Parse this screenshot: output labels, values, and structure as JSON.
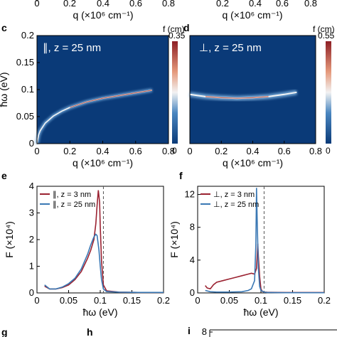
{
  "top_strip": {
    "ticks_left": [
      "0",
      "0.2",
      "0.4",
      "0.6",
      "0.8"
    ],
    "ticks_right": [
      "0.2",
      "0.4",
      "0.6",
      "0.8"
    ],
    "xlabel": "q (×10⁶ cm⁻¹)"
  },
  "panel_labels": {
    "c": "c",
    "d": "d",
    "e": "e",
    "f": "f",
    "g": "g",
    "h": "h",
    "i": "i"
  },
  "chart_data": [
    {
      "id": "c",
      "type": "heatmap",
      "inset_label": "∥, z = 25 nm",
      "xlabel": "q (×10⁶ cm⁻¹)",
      "ylabel": "ħω (eV)",
      "xlim": [
        0,
        0.8
      ],
      "ylim": [
        0,
        0.2
      ],
      "xticks": [
        "0",
        "0.2",
        "0.4",
        "0.6",
        "0.8"
      ],
      "yticks": [
        "0",
        "0.05",
        "0.1",
        "0.15",
        "0.2"
      ],
      "colorbar": {
        "label": "f (cm)",
        "max": "0.35",
        "min": "0"
      },
      "background_color": "#0a3a78",
      "ridge": {
        "q": [
          0.0,
          0.01,
          0.02,
          0.05,
          0.1,
          0.15,
          0.2,
          0.3,
          0.4,
          0.5,
          0.6,
          0.7
        ],
        "hw": [
          0.0,
          0.016,
          0.024,
          0.038,
          0.051,
          0.06,
          0.067,
          0.077,
          0.084,
          0.089,
          0.094,
          0.099
        ]
      }
    },
    {
      "id": "d",
      "type": "heatmap",
      "inset_label": "⊥, z = 25 nm",
      "xlabel": "q (×10⁶ cm⁻¹)",
      "xlim": [
        0,
        0.8
      ],
      "ylim": [
        0,
        0.2
      ],
      "xticks": [
        "0",
        "0.2",
        "0.4",
        "0.6",
        "0.8"
      ],
      "colorbar": {
        "label": "f (cm)",
        "max": "0.55",
        "min": "0"
      },
      "background_color": "#0a3a78",
      "ridge": {
        "q": [
          0.0,
          0.05,
          0.1,
          0.2,
          0.3,
          0.4,
          0.5,
          0.6,
          0.68
        ],
        "hw": [
          0.091,
          0.089,
          0.087,
          0.085,
          0.084,
          0.085,
          0.087,
          0.091,
          0.095
        ]
      }
    },
    {
      "id": "e",
      "type": "line",
      "xlabel": "ħω (eV)",
      "ylabel": "F (×10⁴)",
      "xlim": [
        0,
        0.2
      ],
      "ylim": [
        0,
        4
      ],
      "xticks": [
        "0",
        "0.05",
        "0.1",
        "0.15",
        "0.2"
      ],
      "yticks": [
        "0",
        "1",
        "2",
        "3",
        "4"
      ],
      "vline_x": 0.105,
      "legend_position": "top-left",
      "series": [
        {
          "name": "∥, z = 3 nm",
          "color": "#9b2231",
          "x": [
            0.012,
            0.02,
            0.03,
            0.04,
            0.05,
            0.06,
            0.07,
            0.08,
            0.085,
            0.09,
            0.093,
            0.095,
            0.097,
            0.099,
            0.1,
            0.102,
            0.105,
            0.11,
            0.13,
            0.16,
            0.2
          ],
          "y": [
            0.25,
            0.15,
            0.15,
            0.2,
            0.3,
            0.5,
            0.8,
            1.3,
            1.6,
            2.0,
            2.6,
            3.3,
            3.85,
            3.4,
            2.5,
            1.2,
            0.3,
            0.08,
            0.03,
            0.02,
            0.02
          ]
        },
        {
          "name": "∥, z = 25 nm",
          "color": "#3a78b4",
          "x": [
            0.012,
            0.02,
            0.03,
            0.04,
            0.05,
            0.06,
            0.07,
            0.08,
            0.085,
            0.09,
            0.093,
            0.095,
            0.098,
            0.1,
            0.102,
            0.105,
            0.11,
            0.13,
            0.16,
            0.2
          ],
          "y": [
            0.3,
            0.15,
            0.15,
            0.22,
            0.35,
            0.55,
            0.9,
            1.45,
            1.8,
            2.1,
            2.2,
            2.15,
            1.6,
            1.0,
            0.5,
            0.15,
            0.05,
            0.03,
            0.02,
            0.02
          ]
        }
      ]
    },
    {
      "id": "f",
      "type": "line",
      "xlabel": "ħω (eV)",
      "ylabel": "F (×10⁴)",
      "xlim": [
        0,
        0.2
      ],
      "ylim": [
        0,
        13
      ],
      "xticks": [
        "0",
        "0.05",
        "0.1",
        "0.15",
        "0.2"
      ],
      "yticks": [
        "0",
        "4",
        "8",
        "12"
      ],
      "vline_x": 0.105,
      "legend_position": "top-left",
      "series": [
        {
          "name": "⊥, z = 3 nm",
          "color": "#9b2231",
          "x": [
            0.012,
            0.015,
            0.02,
            0.025,
            0.03,
            0.04,
            0.05,
            0.06,
            0.07,
            0.08,
            0.085,
            0.09,
            0.093,
            0.095,
            0.096,
            0.098,
            0.1,
            0.102,
            0.105,
            0.11,
            0.14,
            0.2
          ],
          "y": [
            0.9,
            0.6,
            0.5,
            1.0,
            1.3,
            1.5,
            1.7,
            1.9,
            2.1,
            2.3,
            2.4,
            2.3,
            3.0,
            6.0,
            4.5,
            2.0,
            0.5,
            0.2,
            0.1,
            0.08,
            0.05,
            0.05
          ]
        },
        {
          "name": "⊥, z = 25 nm",
          "color": "#3a78b4",
          "x": [
            0.012,
            0.02,
            0.03,
            0.05,
            0.07,
            0.08,
            0.085,
            0.09,
            0.092,
            0.093,
            0.094,
            0.096,
            0.098,
            0.1,
            0.105,
            0.11,
            0.14,
            0.2
          ],
          "y": [
            0.3,
            0.15,
            0.1,
            0.1,
            0.15,
            0.3,
            0.5,
            1.5,
            6.0,
            12.8,
            9.0,
            3.0,
            0.8,
            0.3,
            0.1,
            0.05,
            0.03,
            0.03
          ]
        }
      ]
    },
    {
      "id": "i",
      "type": "line",
      "yticks_visible": [
        "8"
      ]
    }
  ]
}
